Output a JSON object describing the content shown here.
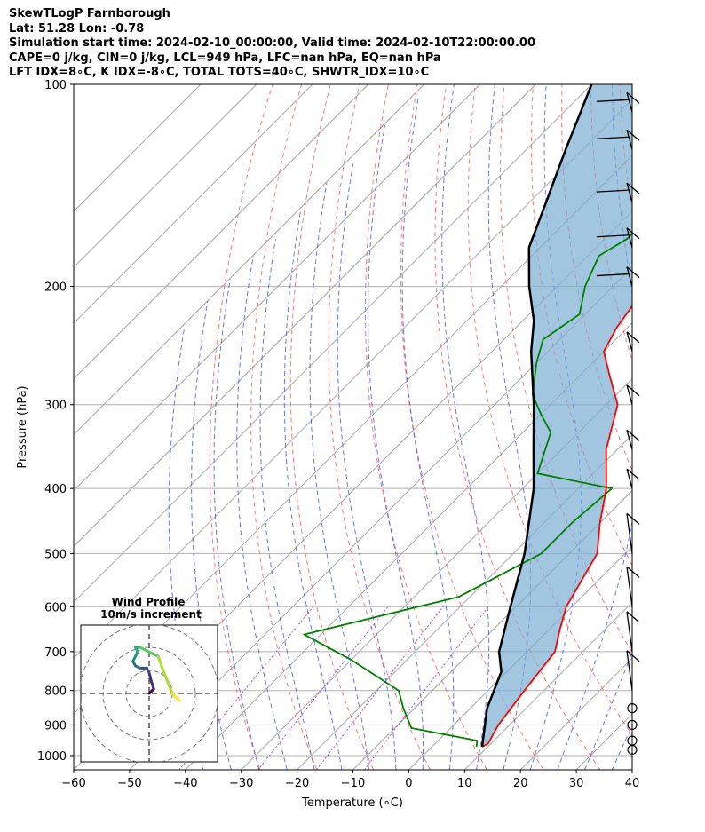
{
  "header": {
    "line1": "SkewTLogP Farnborough",
    "line2": "Lat: 51.28   Lon: -0.78",
    "line3": "Simulation start time: 2024-02-10_00:00:00, Valid time: 2024-02-10T22:00:00.00",
    "line4": "CAPE=0 j/kg, CIN=0 j/kg, LCL=949 hPa, LFC=nan hPa, EQ=nan hPa",
    "line5": "LFT IDX=8∘C, K IDX=-8∘C, TOTAL TOTS=40∘C, SHWTR_IDX=10∘C"
  },
  "chart_data": {
    "type": "line",
    "xlabel": "Temperature (∘C)",
    "ylabel": "Pressure (hPa)",
    "xlim": [
      -60,
      40
    ],
    "ylim": [
      1050,
      100
    ],
    "log_y": true,
    "grid": true,
    "x_ticks": [
      -60,
      -50,
      -40,
      -30,
      -20,
      -10,
      0,
      10,
      20,
      30,
      40
    ],
    "x_tick_labels": [
      "−60",
      "−50",
      "−40",
      "−30",
      "−20",
      "−10",
      "0",
      "10",
      "20",
      "30",
      "40"
    ],
    "y_ticks": [
      100,
      200,
      300,
      400,
      500,
      600,
      700,
      800,
      900,
      1000
    ],
    "y_tick_labels": [
      "100",
      "200",
      "300",
      "400",
      "500",
      "600",
      "700",
      "800",
      "900",
      "1000"
    ],
    "skew_deg": 45,
    "series": [
      {
        "role": "temperature",
        "color": "#ff0000",
        "points": [
          [
            9,
            970
          ],
          [
            9.5,
            960
          ],
          [
            8,
            900
          ],
          [
            6.5,
            800
          ],
          [
            5,
            700
          ],
          [
            2,
            650
          ],
          [
            -1,
            600
          ],
          [
            -5,
            500
          ],
          [
            -10,
            450
          ],
          [
            -15,
            400
          ],
          [
            -22,
            350
          ],
          [
            -28,
            300
          ],
          [
            -35,
            270
          ],
          [
            -40,
            250
          ],
          [
            -42,
            230
          ],
          [
            -44,
            200
          ],
          [
            -48,
            180
          ],
          [
            -54,
            150
          ],
          [
            -57,
            130
          ],
          [
            -61,
            110
          ],
          [
            -63,
            100
          ]
        ]
      },
      {
        "role": "dewpoint",
        "color": "#008000",
        "points": [
          [
            8,
            970
          ],
          [
            7,
            950
          ],
          [
            -7,
            910
          ],
          [
            -12,
            850
          ],
          [
            -16,
            800
          ],
          [
            -30,
            720
          ],
          [
            -43,
            660
          ],
          [
            -22,
            580
          ],
          [
            -15,
            500
          ],
          [
            -15,
            450
          ],
          [
            -14,
            400
          ],
          [
            -30,
            380
          ],
          [
            -35,
            330
          ],
          [
            -40,
            310
          ],
          [
            -45,
            290
          ],
          [
            -50,
            260
          ],
          [
            -53,
            240
          ],
          [
            -51,
            220
          ],
          [
            -55,
            200
          ],
          [
            -58,
            180
          ],
          [
            -56,
            170
          ],
          [
            -56,
            150
          ],
          [
            -58,
            120
          ],
          [
            -60,
            100
          ]
        ]
      },
      {
        "role": "parcel",
        "color": "#000000",
        "points": [
          [
            9,
            970
          ],
          [
            8,
            949
          ],
          [
            3,
            850
          ],
          [
            -1,
            750
          ],
          [
            -5,
            700
          ],
          [
            -11,
            600
          ],
          [
            -18,
            500
          ],
          [
            -28,
            400
          ],
          [
            -35,
            350
          ],
          [
            -43,
            300
          ],
          [
            -53,
            250
          ],
          [
            -58,
            225
          ],
          [
            -65,
            200
          ],
          [
            -72,
            175
          ],
          [
            -77,
            150
          ],
          [
            -83,
            125
          ],
          [
            -87,
            110
          ],
          [
            -90,
            100
          ]
        ]
      }
    ],
    "wind_barbs": {
      "pressures": [
        980,
        950,
        900,
        850,
        800,
        700,
        600,
        500,
        400,
        350,
        300,
        250,
        200,
        175,
        150,
        125,
        110
      ]
    },
    "hodograph": {
      "title_line1": "Wind Profile",
      "title_line2": "10m/s increment",
      "rings": [
        10,
        20,
        30
      ],
      "u": [
        0,
        1,
        2,
        1,
        0,
        -1,
        -4,
        -6,
        -7,
        -5,
        -6,
        -4,
        -2,
        4,
        6,
        10,
        13
      ],
      "v": [
        0,
        1,
        2,
        5,
        9,
        11,
        11,
        12,
        14,
        18,
        20,
        20,
        19,
        16,
        10,
        0,
        -3
      ]
    }
  }
}
